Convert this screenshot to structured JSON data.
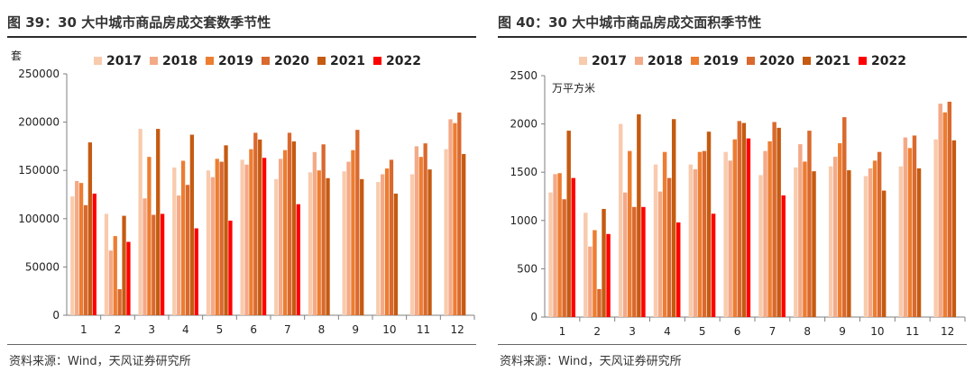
{
  "panels": [
    {
      "title": "图 39：30 大中城市商品房成交套数季节性",
      "source": "资料来源：Wind，天风证券研究所"
    },
    {
      "title": "图 40：30 大中城市商品房成交面积季节性",
      "source": "资料来源：Wind，天风证券研究所"
    }
  ],
  "colors": [
    "#f8cbad",
    "#f4a987",
    "#ed7d31",
    "#d9692e",
    "#c55a11",
    "#ff0000"
  ],
  "chart_data": [
    {
      "type": "bar",
      "title": "30 大中城市商品房成交套数季节性",
      "ylabel": "套",
      "xlabel": "",
      "ylim": [
        0,
        250000
      ],
      "yticks": [
        0,
        50000,
        100000,
        150000,
        200000,
        250000
      ],
      "ytick_labels": [
        "0",
        "50000",
        "100000",
        "150000",
        "200000",
        "250000"
      ],
      "grid": false,
      "legend": "top",
      "categories": [
        "1",
        "2",
        "3",
        "4",
        "5",
        "6",
        "7",
        "8",
        "9",
        "10",
        "11",
        "12"
      ],
      "series": [
        {
          "name": "2017",
          "values": [
            123000,
            105000,
            193000,
            153000,
            150000,
            161000,
            141000,
            148000,
            149000,
            138000,
            146000,
            172000
          ]
        },
        {
          "name": "2018",
          "values": [
            139000,
            67000,
            121000,
            124000,
            143000,
            156000,
            162000,
            169000,
            159000,
            146000,
            175000,
            203000
          ]
        },
        {
          "name": "2019",
          "values": [
            137000,
            82000,
            164000,
            160000,
            162000,
            172000,
            171000,
            150000,
            171000,
            152000,
            164000,
            199000
          ]
        },
        {
          "name": "2020",
          "values": [
            114000,
            27000,
            104000,
            135000,
            159000,
            189000,
            189000,
            177000,
            192000,
            161000,
            178000,
            210000
          ]
        },
        {
          "name": "2021",
          "values": [
            179000,
            103000,
            193000,
            187000,
            176000,
            182000,
            180000,
            142000,
            141000,
            126000,
            151000,
            167000
          ]
        },
        {
          "name": "2022",
          "values": [
            126000,
            76000,
            105000,
            90000,
            98000,
            163000,
            115000,
            null,
            null,
            null,
            null,
            null
          ]
        }
      ]
    },
    {
      "type": "bar",
      "title": "30 大中城市商品房成交面积季节性",
      "ylabel": "万平方米",
      "xlabel": "",
      "ylim": [
        0,
        2500
      ],
      "yticks": [
        0,
        500,
        1000,
        1500,
        2000,
        2500
      ],
      "ytick_labels": [
        "0",
        "500",
        "1000",
        "1500",
        "2000",
        "2500"
      ],
      "grid": false,
      "legend": "top",
      "categories": [
        "1",
        "2",
        "3",
        "4",
        "5",
        "6",
        "7",
        "8",
        "9",
        "10",
        "11",
        "12"
      ],
      "series": [
        {
          "name": "2017",
          "values": [
            1290,
            1080,
            2000,
            1580,
            1580,
            1710,
            1470,
            1550,
            1560,
            1460,
            1560,
            1840
          ]
        },
        {
          "name": "2018",
          "values": [
            1480,
            730,
            1290,
            1300,
            1530,
            1620,
            1720,
            1790,
            1660,
            1540,
            1860,
            2210
          ]
        },
        {
          "name": "2019",
          "values": [
            1490,
            900,
            1720,
            1710,
            1710,
            1840,
            1820,
            1610,
            1800,
            1620,
            1750,
            2120
          ]
        },
        {
          "name": "2020",
          "values": [
            1220,
            290,
            1140,
            1440,
            1720,
            2030,
            2020,
            1930,
            2070,
            1710,
            1880,
            2230
          ]
        },
        {
          "name": "2021",
          "values": [
            1930,
            1120,
            2100,
            2050,
            1920,
            2010,
            1960,
            1510,
            1520,
            1310,
            1540,
            1830
          ]
        },
        {
          "name": "2022",
          "values": [
            1440,
            860,
            1140,
            980,
            1070,
            1850,
            1260,
            null,
            null,
            null,
            null,
            null
          ]
        }
      ]
    }
  ]
}
